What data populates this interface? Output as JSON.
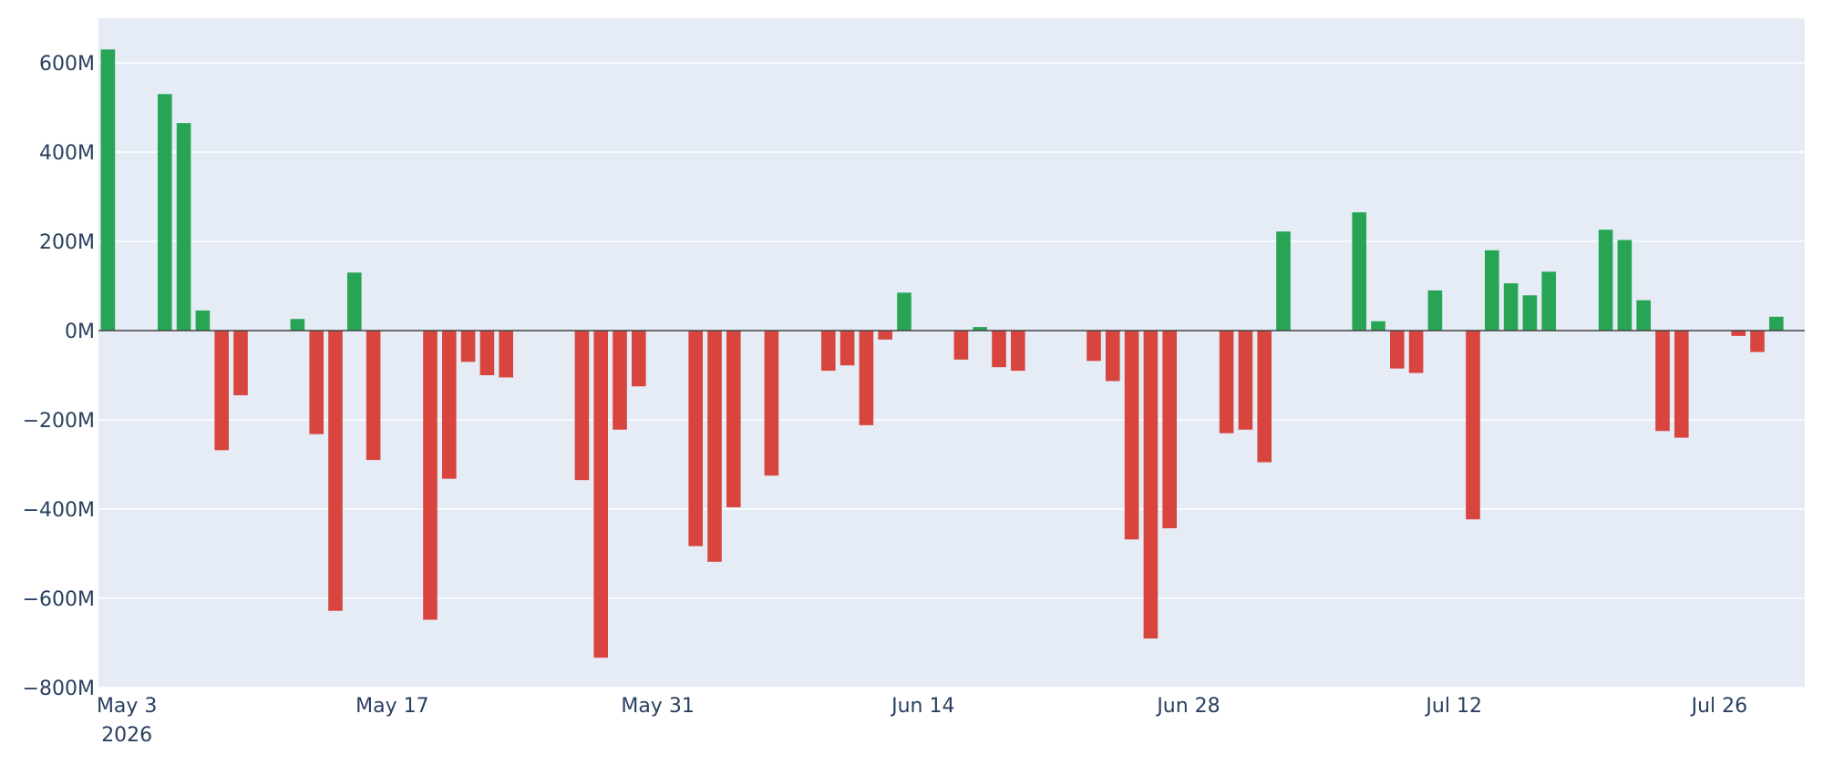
{
  "chart_data": {
    "type": "bar",
    "title": "",
    "xlabel": "",
    "ylabel": "",
    "x_unit": "date",
    "ylim": [
      -800000000,
      700000000
    ],
    "y_ticks": [
      {
        "value": 600000000,
        "label": "600M"
      },
      {
        "value": 400000000,
        "label": "400M"
      },
      {
        "value": 200000000,
        "label": "200M"
      },
      {
        "value": 0,
        "label": "0M"
      },
      {
        "value": -200000000,
        "label": "−200M"
      },
      {
        "value": -400000000,
        "label": "−400M"
      },
      {
        "value": -600000000,
        "label": "−600M"
      },
      {
        "value": -800000000,
        "label": "−800M"
      }
    ],
    "x_ticks": [
      {
        "date": "2026-05-03",
        "label": "May 3",
        "sublabel": "2026"
      },
      {
        "date": "2026-05-17",
        "label": "May 17"
      },
      {
        "date": "2026-05-31",
        "label": "May 31"
      },
      {
        "date": "2026-06-14",
        "label": "Jun 14"
      },
      {
        "date": "2026-06-28",
        "label": "Jun 28"
      },
      {
        "date": "2026-07-12",
        "label": "Jul 12"
      },
      {
        "date": "2026-07-26",
        "label": "Jul 26"
      }
    ],
    "xlim": [
      "2026-05-01T12:00",
      "2026-07-30T12:00"
    ],
    "grid": true,
    "legend": "none",
    "colors": {
      "positive": "#27a554",
      "negative": "#d8453f",
      "plot_bg": "#e5ecf6"
    },
    "x": [
      "2026-05-02",
      "2026-05-05",
      "2026-05-06",
      "2026-05-07",
      "2026-05-08",
      "2026-05-09",
      "2026-05-12",
      "2026-05-13",
      "2026-05-14",
      "2026-05-15",
      "2026-05-16",
      "2026-05-19",
      "2026-05-20",
      "2026-05-21",
      "2026-05-22",
      "2026-05-23",
      "2026-05-27",
      "2026-05-28",
      "2026-05-29",
      "2026-05-30",
      "2026-06-02",
      "2026-06-03",
      "2026-06-04",
      "2026-06-06",
      "2026-06-09",
      "2026-06-10",
      "2026-06-11",
      "2026-06-12",
      "2026-06-13",
      "2026-06-16",
      "2026-06-17",
      "2026-06-18",
      "2026-06-19",
      "2026-06-23",
      "2026-06-24",
      "2026-06-25",
      "2026-06-26",
      "2026-06-27",
      "2026-06-30",
      "2026-07-01",
      "2026-07-02",
      "2026-07-03",
      "2026-07-07",
      "2026-07-08",
      "2026-07-09",
      "2026-07-10",
      "2026-07-11",
      "2026-07-13",
      "2026-07-14",
      "2026-07-15",
      "2026-07-16",
      "2026-07-17",
      "2026-07-20",
      "2026-07-21",
      "2026-07-22",
      "2026-07-23",
      "2026-07-24",
      "2026-07-27",
      "2026-07-28",
      "2026-07-29"
    ],
    "values": [
      630000000,
      530000000,
      465000000,
      45000000,
      -268000000,
      -145000000,
      26000000,
      -232000000,
      -628000000,
      130000000,
      -290000000,
      -648000000,
      -332000000,
      -70000000,
      -100000000,
      -105000000,
      -335000000,
      -733000000,
      -222000000,
      -125000000,
      -483000000,
      -518000000,
      -396000000,
      -325000000,
      -90000000,
      -78000000,
      -212000000,
      -20000000,
      85000000,
      -65000000,
      8000000,
      -82000000,
      -90000000,
      -68000000,
      -113000000,
      -468000000,
      -690000000,
      -443000000,
      -230000000,
      -222000000,
      -295000000,
      222000000,
      265000000,
      21000000,
      -85000000,
      -95000000,
      90000000,
      -423000000,
      180000000,
      106000000,
      79000000,
      132000000,
      226000000,
      203000000,
      68000000,
      -225000000,
      -240000000,
      -12000000,
      -48000000,
      31000000
    ]
  }
}
